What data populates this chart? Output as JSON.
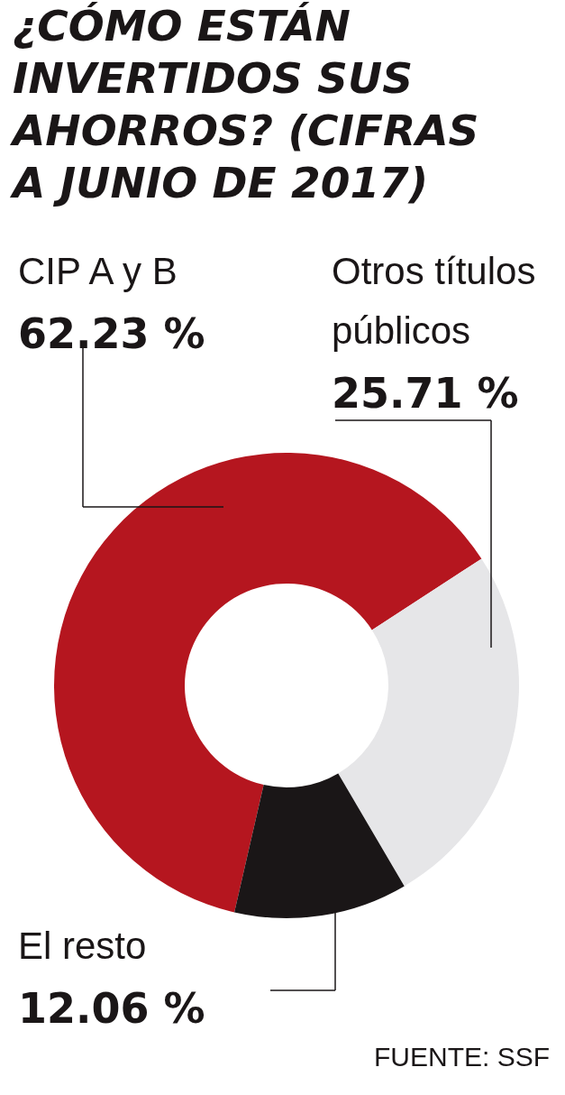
{
  "chart_data": {
    "type": "donut",
    "title": "¿CÓMO ESTÁN INVERTIDOS SUS AHORROS? (CIFRAS A JUNIO DE 2017)",
    "categories": [
      "CIP A y B",
      "Otros títulos públicos",
      "El resto"
    ],
    "values": [
      62.23,
      25.71,
      12.06
    ],
    "value_labels": [
      "62.23 %",
      "25.71 %",
      "12.06 %"
    ],
    "colors": [
      "#b5161f",
      "#e6e6e8",
      "#1a1617"
    ],
    "annotations": [
      "FUENTE: SSF"
    ]
  }
}
